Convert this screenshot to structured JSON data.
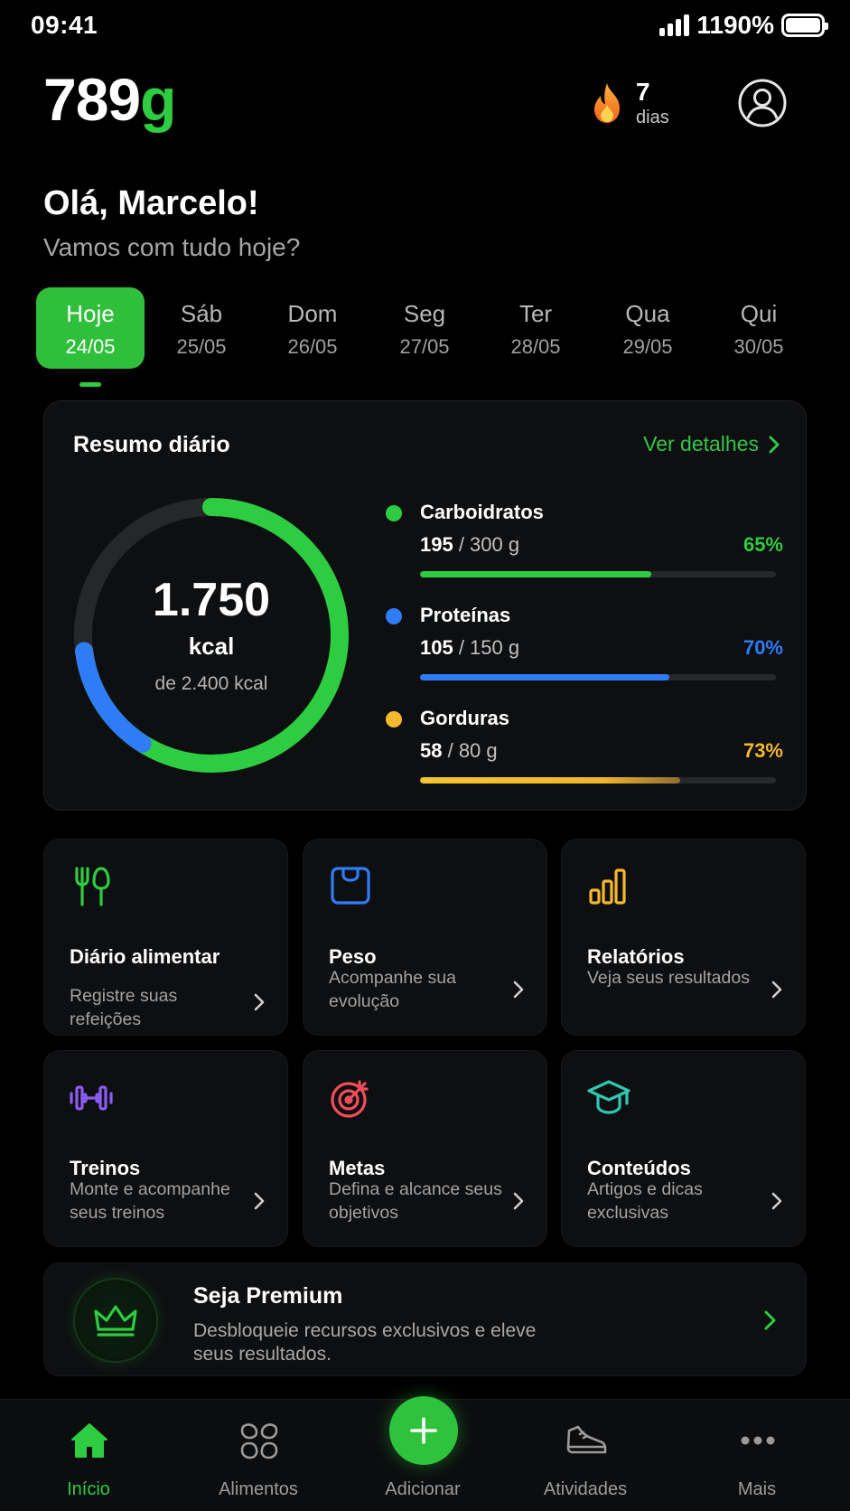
{
  "status_bar": {
    "time": "09:41",
    "battery_text": "1190%"
  },
  "header": {
    "logo_number": "789",
    "logo_unit": "g",
    "streak_count": "7",
    "streak_label": "dias"
  },
  "greeting": {
    "title": "Olá, Marcelo!",
    "subtitle": "Vamos com tudo hoje?"
  },
  "days": [
    {
      "name": "Hoje",
      "date": "24/05",
      "active": true
    },
    {
      "name": "Sáb",
      "date": "25/05"
    },
    {
      "name": "Dom",
      "date": "26/05"
    },
    {
      "name": "Seg",
      "date": "27/05"
    },
    {
      "name": "Ter",
      "date": "28/05"
    },
    {
      "name": "Qua",
      "date": "29/05"
    },
    {
      "name": "Qui",
      "date": "30/05"
    }
  ],
  "summary": {
    "title": "Resumo diário",
    "link": "Ver detalhes",
    "calories_value": "1.750",
    "calories_unit": "kcal",
    "calories_goal": "de 2.400 kcal",
    "calories_progress": 0.73,
    "macros": [
      {
        "name": "Carboidratos",
        "current": "195",
        "rest": " / 300 g",
        "percent": "65%",
        "fraction": 0.65,
        "color": "#2ecc40"
      },
      {
        "name": "Proteínas",
        "current": "105",
        "rest": " / 150 g",
        "percent": "70%",
        "fraction": 0.7,
        "color": "#2f7cf6"
      },
      {
        "name": "Gorduras",
        "current": "58",
        "rest": " / 80 g",
        "percent": "73%",
        "fraction": 0.73,
        "color": "#f5b82e"
      }
    ]
  },
  "features": [
    {
      "title": "Diário alimentar",
      "desc": "Registre suas refeições",
      "icon": "utensils-icon",
      "color": "#2ecc40"
    },
    {
      "title": "Peso",
      "desc": "Acompanhe sua evolução",
      "icon": "scale-icon",
      "color": "#2f7cf6"
    },
    {
      "title": "Relatórios",
      "desc": "Veja seus resultados",
      "icon": "bar-chart-icon",
      "color": "#f5b82e"
    },
    {
      "title": "Treinos",
      "desc": "Monte e acompanhe seus treinos",
      "icon": "dumbbell-icon",
      "color": "#8b5cf6"
    },
    {
      "title": "Metas",
      "desc": "Defina e alcance seus objetivos",
      "icon": "target-icon",
      "color": "#f04d5a"
    },
    {
      "title": "Conteúdos",
      "desc": "Artigos e dicas exclusivas",
      "icon": "graduation-cap-icon",
      "color": "#2ec9b0"
    }
  ],
  "premium": {
    "title": "Seja Premium",
    "desc": "Desbloqueie recursos exclusivos e eleve seus resultados."
  },
  "nav": [
    {
      "label": "Início",
      "icon": "home-icon",
      "active": true
    },
    {
      "label": "Alimentos",
      "icon": "food-icon"
    },
    {
      "label": "Adicionar",
      "icon": "plus-icon"
    },
    {
      "label": "Atividades",
      "icon": "sneaker-icon"
    },
    {
      "label": "Mais",
      "icon": "more-icon"
    }
  ],
  "colors": {
    "accent": "#2ecc40",
    "background": "#000000",
    "card": "#0e0f11"
  }
}
